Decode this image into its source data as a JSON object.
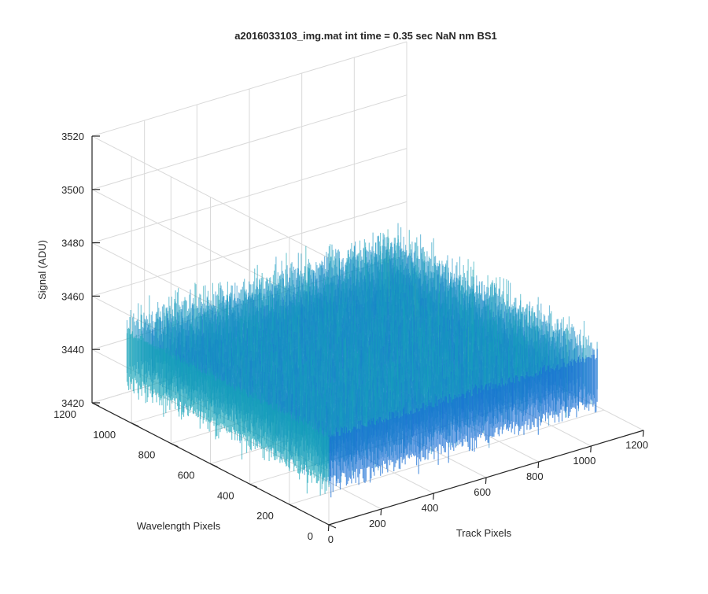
{
  "chart_data": {
    "type": "surface",
    "title": "a2016033103_img.mat int time = 0.35 sec  NaN nm BS1",
    "xlabel": "Track Pixels",
    "ylabel": "Wavelength Pixels",
    "zlabel": "Signal (ADU)",
    "xlim": [
      0,
      1200
    ],
    "ylim": [
      0,
      1200
    ],
    "zlim": [
      3420,
      3520
    ],
    "xticks": [
      "0",
      "200",
      "400",
      "600",
      "800",
      "1000",
      "1200"
    ],
    "yticks": [
      "0",
      "200",
      "400",
      "600",
      "800",
      "1000",
      "1200"
    ],
    "zticks": [
      "3420",
      "3440",
      "3460",
      "3480",
      "3500",
      "3520"
    ],
    "data_extent": {
      "x": [
        1,
        1024
      ],
      "y": [
        1,
        1024
      ]
    },
    "mean_signal": 3448,
    "noise_range": [
      3425,
      3505
    ],
    "colormap": "parula",
    "grid": true,
    "view": "3d"
  },
  "colors": {
    "surface_low": "#1a6fd4",
    "surface_mid": "#14a3b8",
    "surface_high": "#a6c964"
  }
}
